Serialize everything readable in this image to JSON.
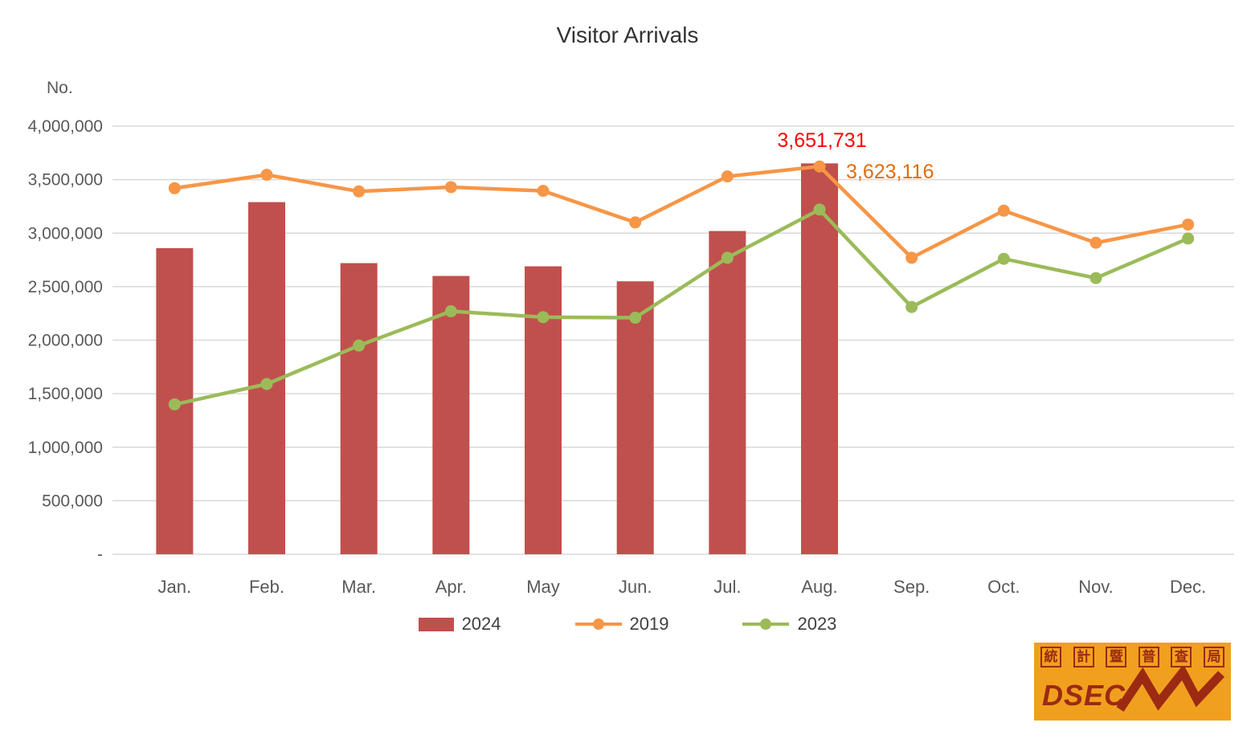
{
  "title": "Visitor Arrivals",
  "y_axis_unit": "No.",
  "chart_data": {
    "type": "bar",
    "categories": [
      "Jan.",
      "Feb.",
      "Mar.",
      "Apr.",
      "May",
      "Jun.",
      "Jul.",
      "Aug.",
      "Sep.",
      "Oct.",
      "Nov.",
      "Dec."
    ],
    "ylim": [
      0,
      4000000
    ],
    "grid": true,
    "legend_position": "bottom",
    "y_tick_values": [
      0,
      500000,
      1000000,
      1500000,
      2000000,
      2500000,
      3000000,
      3500000,
      4000000
    ],
    "y_tick_labels": [
      "-",
      "500,000",
      "1,000,000",
      "1,500,000",
      "2,000,000",
      "2,500,000",
      "3,000,000",
      "3,500,000",
      "4,000,000"
    ],
    "series": [
      {
        "name": "2024",
        "type": "bar",
        "color": "#c0504d",
        "values": [
          2860000,
          3290000,
          2720000,
          2600000,
          2690000,
          2550000,
          3020000,
          3651731,
          null,
          null,
          null,
          null
        ]
      },
      {
        "name": "2019",
        "type": "line",
        "color": "#f79646",
        "values": [
          3420000,
          3545000,
          3390000,
          3430000,
          3395000,
          3100000,
          3530000,
          3623116,
          2770000,
          3210000,
          2910000,
          3080000
        ]
      },
      {
        "name": "2023",
        "type": "line",
        "color": "#9bbb59",
        "values": [
          1400000,
          1590000,
          1950000,
          2270000,
          2215000,
          2210000,
          2770000,
          3220000,
          2310000,
          2760000,
          2580000,
          2950000
        ]
      }
    ],
    "annotations": [
      {
        "text": "3,651,731",
        "color": "#ff0000",
        "category_index": 7,
        "x_offset": 3,
        "y": 183,
        "anchor": "middle"
      },
      {
        "text": "3,623,116",
        "color": "#e36c09",
        "category_index": 7,
        "x_offset": 33,
        "y": 222,
        "anchor": "start"
      }
    ],
    "legend": [
      {
        "label": "2024",
        "type": "bar",
        "color": "#c0504d"
      },
      {
        "label": "2019",
        "type": "line",
        "color": "#f79646"
      },
      {
        "label": "2023",
        "type": "line",
        "color": "#9bbb59"
      }
    ]
  },
  "logo": {
    "top_chars": [
      "統",
      "計",
      "暨",
      "普",
      "查",
      "局"
    ],
    "name": "DSEC",
    "bg_color": "#f0a01e",
    "fg_color": "#9c2a13"
  }
}
